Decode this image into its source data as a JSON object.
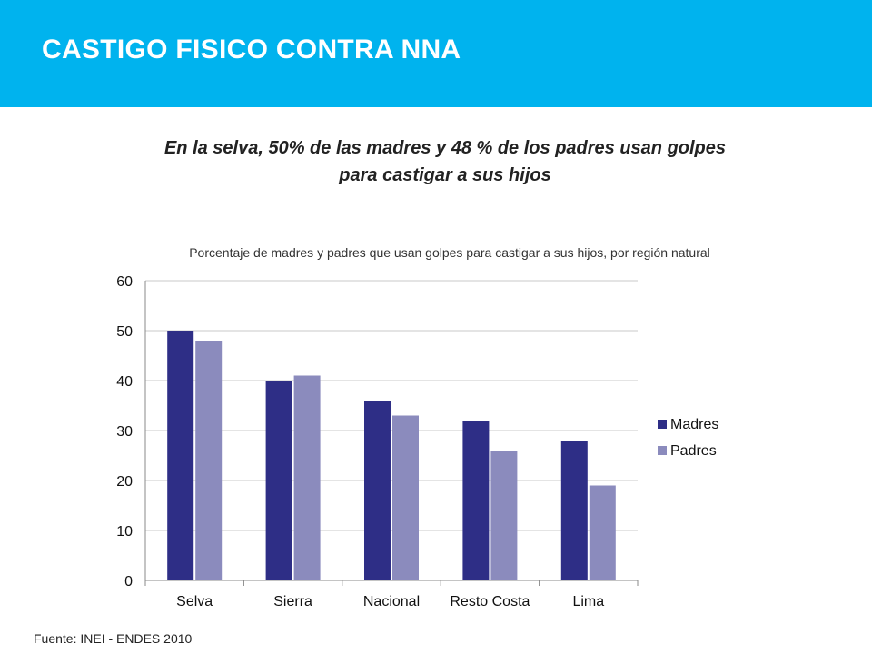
{
  "header": {
    "title": "CASTIGO FISICO CONTRA NNA"
  },
  "subtitle_line1": "En la selva, 50% de las madres y 48 % de los padres usan golpes",
  "subtitle_line2": "para castigar a sus hijos",
  "source": "Fuente: INEI - ENDES 2010",
  "colors": {
    "banner": "#00b3ee",
    "madres": "#2e2e86",
    "padres": "#8b8bbd"
  },
  "chart_data": {
    "type": "bar",
    "title": "Porcentaje de madres y padres que usan golpes para castigar a sus hijos, por región natural",
    "categories": [
      "Selva",
      "Sierra",
      "Nacional",
      "Resto Costa",
      "Lima"
    ],
    "series": [
      {
        "name": "Madres",
        "values": [
          50,
          40,
          36,
          32,
          28
        ]
      },
      {
        "name": "Padres",
        "values": [
          48,
          41,
          33,
          26,
          19
        ]
      }
    ],
    "ylim": [
      0,
      60
    ],
    "yticks": [
      0,
      10,
      20,
      30,
      40,
      50,
      60
    ],
    "grid": true,
    "legend": "right"
  }
}
